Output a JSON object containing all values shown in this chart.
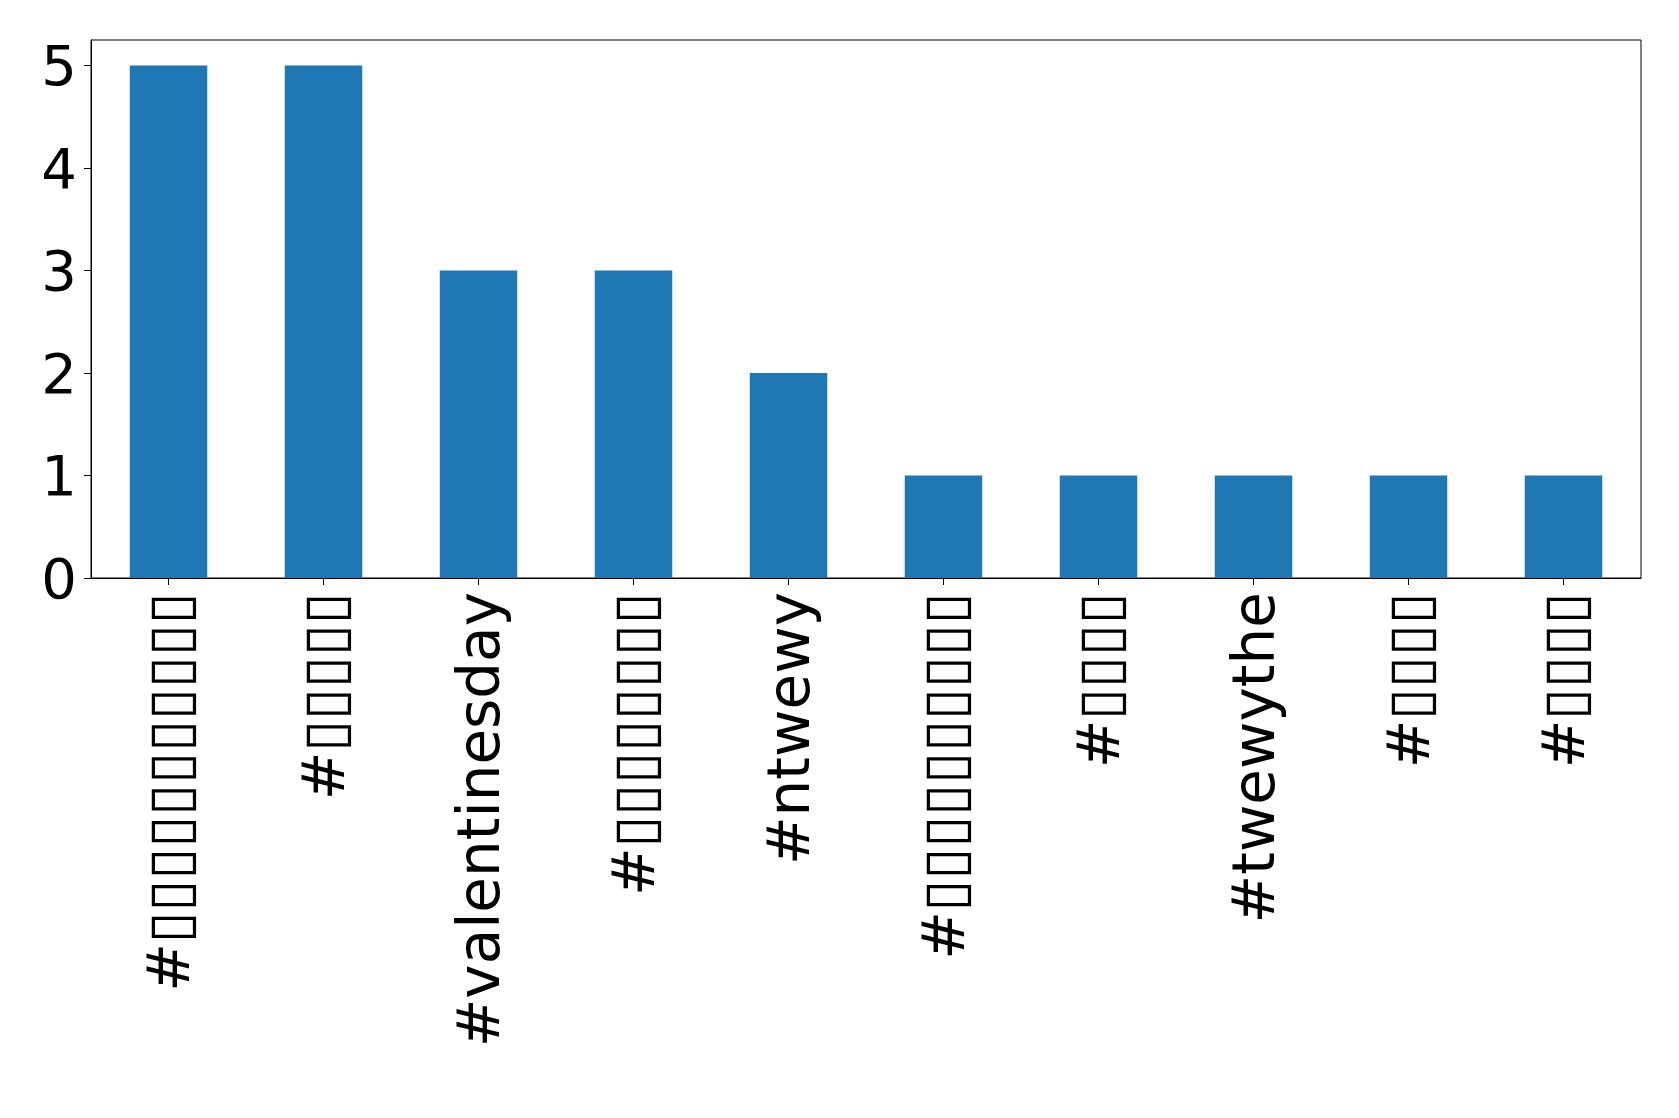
{
  "chart_data": {
    "type": "bar",
    "categories": [
      "#▯▯▯▯▯▯▯▯▯▯▯",
      "#▯▯▯▯▯",
      "#valentinesday",
      "#▯▯▯▯▯▯▯▯",
      "#ntwewy",
      "#▯▯▯▯▯▯▯▯▯▯",
      "#▯▯▯▯",
      "#twewythe",
      "#▯▯▯▯",
      "#▯▯▯▯"
    ],
    "values": [
      5,
      5,
      3,
      3,
      2,
      1,
      1,
      1,
      1,
      1
    ],
    "color": "#1f77b4",
    "ylim": [
      0,
      5.25
    ],
    "yticks": [
      0,
      1,
      2,
      3,
      4,
      5
    ],
    "grid": false
  }
}
